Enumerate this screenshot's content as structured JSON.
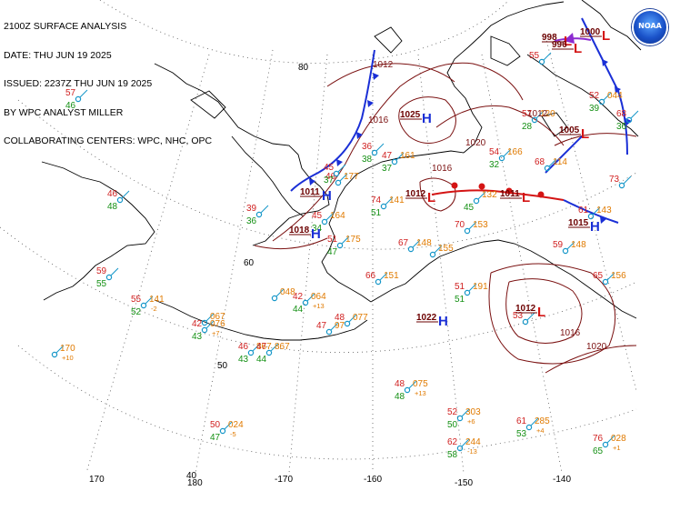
{
  "header": {
    "line1": "2100Z SURFACE ANALYSIS",
    "line2": "DATE: THU JUN 19 2025",
    "line3": "ISSUED: 2237Z THU JUN 19 2025",
    "line4": "BY WPC ANALYST MILLER",
    "line5": "COLLABORATING CENTERS: WPC, NHC, OPC"
  },
  "logo": {
    "text": "NOAA",
    "color": "#1a52c9"
  },
  "colors": {
    "isobar": "#7a1010",
    "high": "#1a2fd6",
    "low": "#d41414",
    "cold_front": "#1a2fd6",
    "warm_front": "#d41414",
    "occluded": "#8c2bd0",
    "coast": "#000000",
    "temperature": "#d02020",
    "dewpoint": "#149014",
    "pressure": "#e07a00",
    "station": "#1496c8",
    "grid": "#555555"
  },
  "graticule_labels": {
    "lat": [
      "80",
      "60",
      "50",
      "40"
    ],
    "lon": [
      "170",
      "180",
      "-170",
      "-160",
      "-150",
      "-140"
    ]
  },
  "isobar_labels": [
    "1012",
    "1016",
    "1016",
    "1020",
    "1012",
    "1016",
    "1020"
  ],
  "centers": [
    {
      "kind": "H",
      "pressure": "1025"
    },
    {
      "kind": "H",
      "pressure": "1011"
    },
    {
      "kind": "H",
      "pressure": "1018"
    },
    {
      "kind": "L",
      "pressure": "1012"
    },
    {
      "kind": "L",
      "pressure": "1011"
    },
    {
      "kind": "H",
      "pressure": "1015"
    },
    {
      "kind": "L",
      "pressure": "1005"
    },
    {
      "kind": "L",
      "pressure": "998"
    },
    {
      "kind": "L",
      "pressure": "996"
    },
    {
      "kind": "H",
      "pressure": "1022"
    },
    {
      "kind": "L",
      "pressure": "1012"
    },
    {
      "kind": "L",
      "pressure": "1000"
    }
  ],
  "stations": [
    {
      "t": "57",
      "d": "46"
    },
    {
      "t": "46",
      "d": "48"
    },
    {
      "t": "59",
      "d": "55"
    },
    {
      "t": "55",
      "p": "141",
      "d": "52",
      "tend": "-2"
    },
    {
      "t": "",
      "p": "170",
      "d": "",
      "tend": "+10"
    },
    {
      "t": "42",
      "p": "076",
      "d": "43",
      "tend": "+7"
    },
    {
      "t": "46",
      "p": "867",
      "d": "43"
    },
    {
      "t": "47",
      "p": "867",
      "d": "44"
    },
    {
      "t": "",
      "p": "048",
      "d": ""
    },
    {
      "t": "42",
      "p": "064",
      "d": "44",
      "tend": "+13"
    },
    {
      "t": "47",
      "p": "97",
      "d": ""
    },
    {
      "t": "48",
      "p": "077",
      "d": ""
    },
    {
      "t": "39",
      "d": "36"
    },
    {
      "t": "46",
      "p": "177",
      "d": ""
    },
    {
      "t": "45",
      "p": "164",
      "d": "34"
    },
    {
      "t": "51",
      "p": "175",
      "d": "47"
    },
    {
      "t": "66",
      "p": "151",
      "d": ""
    },
    {
      "t": "67",
      "p": "148",
      "d": ""
    },
    {
      "t": "74",
      "p": "141",
      "d": "51"
    },
    {
      "t": "47",
      "p": "161",
      "d": "37"
    },
    {
      "t": "36",
      "d": "38"
    },
    {
      "t": "",
      "p": "155",
      "d": ""
    },
    {
      "t": "51",
      "p": "191",
      "d": "51"
    },
    {
      "t": "70",
      "p": "153",
      "d": ""
    },
    {
      "t": "54",
      "p": "166",
      "d": "32"
    },
    {
      "t": "68",
      "p": "114",
      "d": ""
    },
    {
      "t": "",
      "p": "132",
      "d": "45"
    },
    {
      "t": "73",
      "p": "",
      "d": ""
    },
    {
      "t": "61",
      "p": "143",
      "d": ""
    },
    {
      "t": "59",
      "p": "148",
      "d": ""
    },
    {
      "t": "57",
      "p": "120",
      "d": "28"
    },
    {
      "t": "52",
      "p": "044",
      "d": "39"
    },
    {
      "t": "68",
      "d": "36"
    },
    {
      "t": "48",
      "p": "075",
      "d": "48",
      "tend": "+13"
    },
    {
      "t": "52",
      "p": "303",
      "d": "50",
      "tend": "+6"
    },
    {
      "t": "62",
      "p": "244",
      "d": "58",
      "tend": "-13"
    },
    {
      "t": "61",
      "p": "285",
      "d": "53",
      "tend": "+4"
    },
    {
      "t": "76",
      "p": "028",
      "d": "65",
      "tend": "+1"
    },
    {
      "t": "50",
      "p": "024",
      "d": "47",
      "tend": "-5"
    },
    {
      "t": "",
      "p": "067",
      "d": ""
    },
    {
      "t": "65",
      "p": "156",
      "d": ""
    },
    {
      "t": "53",
      "p": "",
      "d": ""
    },
    {
      "t": "45",
      "d": "37"
    },
    {
      "t": "55",
      "d": ""
    }
  ]
}
